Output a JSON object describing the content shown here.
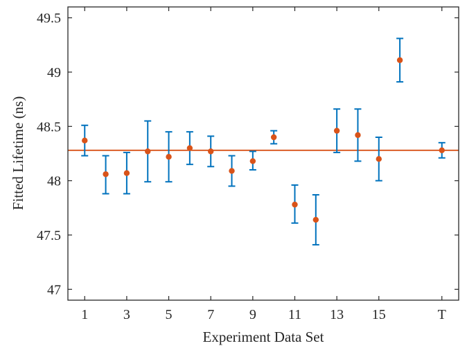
{
  "chart_data": {
    "type": "scatter",
    "title": "",
    "xlabel": "Experiment Data Set",
    "ylabel": "Fitted Lifetime (ns)",
    "xlim": [
      0.2,
      18.8
    ],
    "ylim": [
      46.9,
      49.6
    ],
    "x_ticks": [
      {
        "x": 1,
        "label": "1"
      },
      {
        "x": 3,
        "label": "3"
      },
      {
        "x": 5,
        "label": "5"
      },
      {
        "x": 7,
        "label": "7"
      },
      {
        "x": 9,
        "label": "9"
      },
      {
        "x": 11,
        "label": "11"
      },
      {
        "x": 13,
        "label": "13"
      },
      {
        "x": 15,
        "label": "15"
      },
      {
        "x": 18,
        "label": "T"
      }
    ],
    "y_ticks": [
      {
        "y": 47,
        "label": "47"
      },
      {
        "y": 47.5,
        "label": "47.5"
      },
      {
        "y": 48,
        "label": "48"
      },
      {
        "y": 48.5,
        "label": "48.5"
      },
      {
        "y": 49,
        "label": "49"
      },
      {
        "y": 49.5,
        "label": "49.5"
      }
    ],
    "reference_line": {
      "y": 48.28,
      "color": "#D95319"
    },
    "points": [
      {
        "x": 1,
        "y": 48.37,
        "lower": 48.23,
        "upper": 48.51
      },
      {
        "x": 2,
        "y": 48.06,
        "lower": 47.88,
        "upper": 48.23
      },
      {
        "x": 3,
        "y": 48.07,
        "lower": 47.88,
        "upper": 48.26
      },
      {
        "x": 4,
        "y": 48.27,
        "lower": 47.99,
        "upper": 48.55
      },
      {
        "x": 5,
        "y": 48.22,
        "lower": 47.99,
        "upper": 48.45
      },
      {
        "x": 6,
        "y": 48.3,
        "lower": 48.15,
        "upper": 48.45
      },
      {
        "x": 7,
        "y": 48.27,
        "lower": 48.13,
        "upper": 48.41
      },
      {
        "x": 8,
        "y": 48.09,
        "lower": 47.95,
        "upper": 48.23
      },
      {
        "x": 9,
        "y": 48.18,
        "lower": 48.1,
        "upper": 48.27
      },
      {
        "x": 10,
        "y": 48.4,
        "lower": 48.34,
        "upper": 48.46
      },
      {
        "x": 11,
        "y": 47.78,
        "lower": 47.61,
        "upper": 47.96
      },
      {
        "x": 12,
        "y": 47.64,
        "lower": 47.41,
        "upper": 47.87
      },
      {
        "x": 13,
        "y": 48.46,
        "lower": 48.26,
        "upper": 48.66
      },
      {
        "x": 14,
        "y": 48.42,
        "lower": 48.18,
        "upper": 48.66
      },
      {
        "x": 15,
        "y": 48.2,
        "lower": 48.0,
        "upper": 48.4
      },
      {
        "x": 16,
        "y": 49.11,
        "lower": 48.91,
        "upper": 49.31
      },
      {
        "x": 18,
        "y": 48.28,
        "lower": 48.21,
        "upper": 48.35
      }
    ],
    "marker_color": "#D95319",
    "errorbar_color": "#0072BD",
    "grid": false,
    "legend": "none"
  }
}
